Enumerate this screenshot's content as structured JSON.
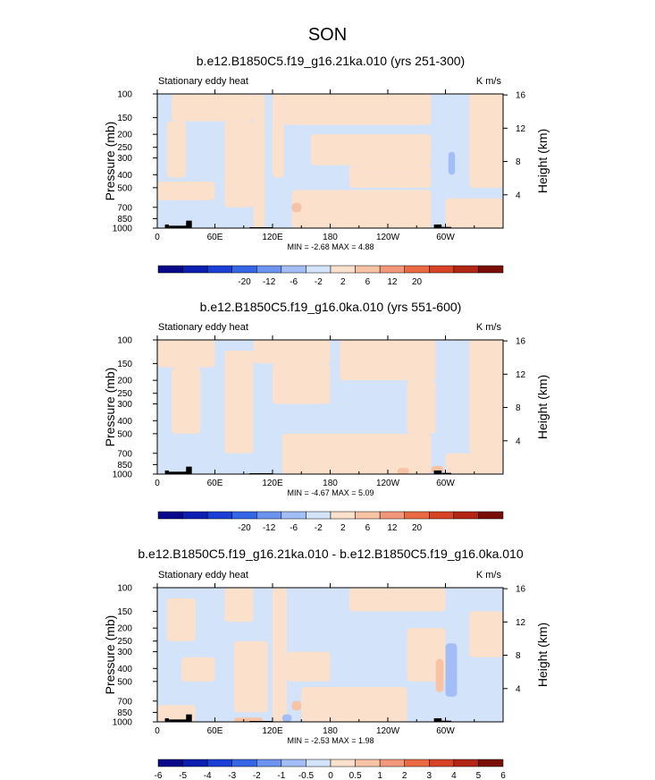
{
  "figure": {
    "title": "SON"
  },
  "colors": {
    "palette": [
      "#08088a",
      "#0c1fb0",
      "#1b3fd6",
      "#3566e6",
      "#6b93ef",
      "#a3bef6",
      "#d2e3fa",
      "#fbe0cb",
      "#f8c3a4",
      "#f3977a",
      "#ea6a44",
      "#d84325",
      "#b32614",
      "#7a0d08"
    ],
    "land": "#000000",
    "frame": "#000000"
  },
  "chart_data": [
    {
      "type": "heatmap",
      "title": "b.e12.B1850C5.f19_g16.21ka.010 (yrs 251-300)",
      "left_label": "Stationary eddy heat",
      "units": "K m/s",
      "ylabel_left": "Pressure (mb)",
      "ylabel_right": "Height (km)",
      "x_ticks": [
        "0",
        "60E",
        "120E",
        "180",
        "120W",
        "60W"
      ],
      "x_tick_values": [
        0,
        60,
        120,
        180,
        240,
        300
      ],
      "x_range": [
        0,
        360
      ],
      "y_ticks": [
        "100",
        "150",
        "200",
        "250",
        "300",
        "400",
        "500",
        "700",
        "850",
        "1000"
      ],
      "y_tick_values": [
        100,
        150,
        200,
        250,
        300,
        400,
        500,
        700,
        850,
        1000
      ],
      "y_range_mb": [
        100,
        1000
      ],
      "height_ticks": [
        "4",
        "8",
        "12",
        "16"
      ],
      "height_tick_values_km": [
        4,
        8,
        12,
        16
      ],
      "stats": "MIN =  -2.68   MAX =  4.88",
      "colorbar_labels": [
        "-20",
        "-12",
        "-6",
        "-2",
        "2",
        "6",
        "12",
        "20"
      ],
      "colorbar_levels": [
        -24,
        -20,
        -16,
        -12,
        -9,
        -6,
        -4,
        -2,
        0,
        2,
        4,
        6,
        9,
        12,
        16,
        20,
        24
      ],
      "regions": [
        {
          "lon": [
            0,
            15
          ],
          "p": [
            100,
            1000
          ],
          "level": "neg"
        },
        {
          "lon": [
            15,
            100
          ],
          "p": [
            100,
            160
          ],
          "level": "pos"
        },
        {
          "lon": [
            10,
            30
          ],
          "p": [
            160,
            420
          ],
          "level": "pos"
        },
        {
          "lon": [
            70,
            100
          ],
          "p": [
            160,
            700
          ],
          "level": "pos"
        },
        {
          "lon": [
            0,
            60
          ],
          "p": [
            450,
            620
          ],
          "level": "pos"
        },
        {
          "lon": [
            100,
            112
          ],
          "p": [
            100,
            1000
          ],
          "level": "pos"
        },
        {
          "lon": [
            112,
            120
          ],
          "p": [
            100,
            1000
          ],
          "level": "neg"
        },
        {
          "lon": [
            120,
            132
          ],
          "p": [
            100,
            420
          ],
          "level": "pos"
        },
        {
          "lon": [
            132,
            285
          ],
          "p": [
            100,
            170
          ],
          "level": "pos"
        },
        {
          "lon": [
            160,
            285
          ],
          "p": [
            200,
            340
          ],
          "level": "pos"
        },
        {
          "lon": [
            200,
            285
          ],
          "p": [
            340,
            500
          ],
          "level": "pos"
        },
        {
          "lon": [
            140,
            285
          ],
          "p": [
            520,
            1000
          ],
          "level": "pos"
        },
        {
          "lon": [
            285,
            300
          ],
          "p": [
            100,
            1000
          ],
          "level": "neg"
        },
        {
          "lon": [
            325,
            360
          ],
          "p": [
            100,
            500
          ],
          "level": "pos"
        },
        {
          "lon": [
            300,
            360
          ],
          "p": [
            600,
            1000
          ],
          "level": "pos"
        },
        {
          "lon": [
            140,
            150
          ],
          "p": [
            650,
            760
          ],
          "level": "pos2"
        },
        {
          "lon": [
            303,
            310
          ],
          "p": [
            270,
            400
          ],
          "level": "neg2"
        }
      ],
      "land": [
        {
          "lon": [
            8,
            12
          ],
          "p": [
            940,
            1000
          ]
        },
        {
          "lon": [
            12,
            30
          ],
          "p": [
            960,
            1000
          ]
        },
        {
          "lon": [
            30,
            36
          ],
          "p": [
            880,
            1000
          ]
        },
        {
          "lon": [
            96,
            120
          ],
          "p": [
            985,
            1000
          ]
        },
        {
          "lon": [
            288,
            296
          ],
          "p": [
            940,
            1000
          ]
        },
        {
          "lon": [
            296,
            306
          ],
          "p": [
            980,
            1000
          ]
        }
      ]
    },
    {
      "type": "heatmap",
      "title": "b.e12.B1850C5.f19_g16.0ka.010 (yrs 551-600)",
      "left_label": "Stationary eddy heat",
      "units": "K m/s",
      "ylabel_left": "Pressure (mb)",
      "ylabel_right": "Height (km)",
      "x_ticks": [
        "0",
        "60E",
        "120E",
        "180",
        "120W",
        "60W"
      ],
      "x_tick_values": [
        0,
        60,
        120,
        180,
        240,
        300
      ],
      "x_range": [
        0,
        360
      ],
      "y_ticks": [
        "100",
        "150",
        "200",
        "250",
        "300",
        "400",
        "500",
        "700",
        "850",
        "1000"
      ],
      "y_tick_values": [
        100,
        150,
        200,
        250,
        300,
        400,
        500,
        700,
        850,
        1000
      ],
      "y_range_mb": [
        100,
        1000
      ],
      "height_ticks": [
        "4",
        "8",
        "12",
        "16"
      ],
      "height_tick_values_km": [
        4,
        8,
        12,
        16
      ],
      "stats": "MIN =  -4.67   MAX =  5.09",
      "colorbar_labels": [
        "-20",
        "-12",
        "-6",
        "-2",
        "2",
        "6",
        "12",
        "20"
      ],
      "colorbar_levels": [
        -24,
        -20,
        -16,
        -12,
        -9,
        -6,
        -4,
        -2,
        0,
        2,
        4,
        6,
        9,
        12,
        16,
        20,
        24
      ],
      "regions": [
        {
          "lon": [
            0,
            60
          ],
          "p": [
            100,
            160
          ],
          "level": "pos"
        },
        {
          "lon": [
            15,
            45
          ],
          "p": [
            160,
            500
          ],
          "level": "pos"
        },
        {
          "lon": [
            70,
            100
          ],
          "p": [
            120,
            700
          ],
          "level": "pos"
        },
        {
          "lon": [
            100,
            180
          ],
          "p": [
            100,
            150
          ],
          "level": "pos"
        },
        {
          "lon": [
            120,
            180
          ],
          "p": [
            150,
            300
          ],
          "level": "pos"
        },
        {
          "lon": [
            130,
            285
          ],
          "p": [
            500,
            1000
          ],
          "level": "pos"
        },
        {
          "lon": [
            190,
            290
          ],
          "p": [
            100,
            200
          ],
          "level": "pos"
        },
        {
          "lon": [
            260,
            290
          ],
          "p": [
            200,
            500
          ],
          "level": "pos"
        },
        {
          "lon": [
            325,
            360
          ],
          "p": [
            100,
            700
          ],
          "level": "pos"
        },
        {
          "lon": [
            300,
            360
          ],
          "p": [
            700,
            1000
          ],
          "level": "pos"
        },
        {
          "lon": [
            250,
            262
          ],
          "p": [
            900,
            1000
          ],
          "level": "pos2"
        },
        {
          "lon": [
            285,
            298
          ],
          "p": [
            870,
            980
          ],
          "level": "pos2"
        }
      ],
      "land": [
        {
          "lon": [
            8,
            12
          ],
          "p": [
            940,
            1000
          ]
        },
        {
          "lon": [
            12,
            30
          ],
          "p": [
            960,
            1000
          ]
        },
        {
          "lon": [
            30,
            36
          ],
          "p": [
            880,
            1000
          ]
        },
        {
          "lon": [
            96,
            120
          ],
          "p": [
            985,
            1000
          ]
        },
        {
          "lon": [
            288,
            296
          ],
          "p": [
            940,
            1000
          ]
        },
        {
          "lon": [
            296,
            306
          ],
          "p": [
            980,
            1000
          ]
        }
      ]
    },
    {
      "type": "heatmap",
      "title": "b.e12.B1850C5.f19_g16.21ka.010 - b.e12.B1850C5.f19_g16.0ka.010",
      "left_label": "Stationary eddy heat",
      "units": "K m/s",
      "ylabel_left": "Pressure (mb)",
      "ylabel_right": "Height (km)",
      "x_ticks": [
        "0",
        "60E",
        "120E",
        "180",
        "120W",
        "60W"
      ],
      "x_tick_values": [
        0,
        60,
        120,
        180,
        240,
        300
      ],
      "x_range": [
        0,
        360
      ],
      "y_ticks": [
        "100",
        "150",
        "200",
        "250",
        "300",
        "400",
        "500",
        "700",
        "850",
        "1000"
      ],
      "y_tick_values": [
        100,
        150,
        200,
        250,
        300,
        400,
        500,
        700,
        850,
        1000
      ],
      "y_range_mb": [
        100,
        1000
      ],
      "height_ticks": [
        "4",
        "8",
        "12",
        "16"
      ],
      "height_tick_values_km": [
        4,
        8,
        12,
        16
      ],
      "stats": "MIN =  -2.53   MAX =  1.98",
      "colorbar_labels": [
        "-6",
        "-5",
        "-4",
        "-3",
        "-2",
        "-1",
        "-0.5",
        "0",
        "0.5",
        "1",
        "2",
        "3",
        "4",
        "5",
        "6"
      ],
      "colorbar_levels": [
        -7,
        -6,
        -5,
        -4,
        -3,
        -2,
        -1,
        -0.5,
        0,
        0.5,
        1,
        2,
        3,
        4,
        5,
        6,
        7
      ],
      "regions": [
        {
          "lon": [
            10,
            40
          ],
          "p": [
            120,
            250
          ],
          "level": "pos"
        },
        {
          "lon": [
            70,
            100
          ],
          "p": [
            100,
            180
          ],
          "level": "pos"
        },
        {
          "lon": [
            25,
            60
          ],
          "p": [
            330,
            500
          ],
          "level": "pos"
        },
        {
          "lon": [
            80,
            115
          ],
          "p": [
            250,
            850
          ],
          "level": "pos"
        },
        {
          "lon": [
            120,
            135
          ],
          "p": [
            100,
            1000
          ],
          "level": "pos"
        },
        {
          "lon": [
            135,
            180
          ],
          "p": [
            300,
            500
          ],
          "level": "pos"
        },
        {
          "lon": [
            150,
            260
          ],
          "p": [
            550,
            1000
          ],
          "level": "pos"
        },
        {
          "lon": [
            200,
            300
          ],
          "p": [
            100,
            150
          ],
          "level": "pos"
        },
        {
          "lon": [
            260,
            300
          ],
          "p": [
            200,
            500
          ],
          "level": "pos"
        },
        {
          "lon": [
            325,
            360
          ],
          "p": [
            150,
            330
          ],
          "level": "pos"
        },
        {
          "lon": [
            0,
            40
          ],
          "p": [
            750,
            1000
          ],
          "level": "pos"
        },
        {
          "lon": [
            140,
            150
          ],
          "p": [
            700,
            820
          ],
          "level": "pos2"
        },
        {
          "lon": [
            80,
            110
          ],
          "p": [
            930,
            1000
          ],
          "level": "pos2"
        },
        {
          "lon": [
            300,
            312
          ],
          "p": [
            260,
            650
          ],
          "level": "neg2"
        },
        {
          "lon": [
            290,
            298
          ],
          "p": [
            340,
            600
          ],
          "level": "pos2"
        },
        {
          "lon": [
            130,
            140
          ],
          "p": [
            880,
            1000
          ],
          "level": "neg2"
        }
      ],
      "land": [
        {
          "lon": [
            8,
            12
          ],
          "p": [
            940,
            1000
          ]
        },
        {
          "lon": [
            12,
            30
          ],
          "p": [
            960,
            1000
          ]
        },
        {
          "lon": [
            30,
            36
          ],
          "p": [
            880,
            1000
          ]
        },
        {
          "lon": [
            96,
            120
          ],
          "p": [
            985,
            1000
          ]
        },
        {
          "lon": [
            288,
            296
          ],
          "p": [
            940,
            1000
          ]
        },
        {
          "lon": [
            296,
            306
          ],
          "p": [
            980,
            1000
          ]
        }
      ]
    }
  ]
}
